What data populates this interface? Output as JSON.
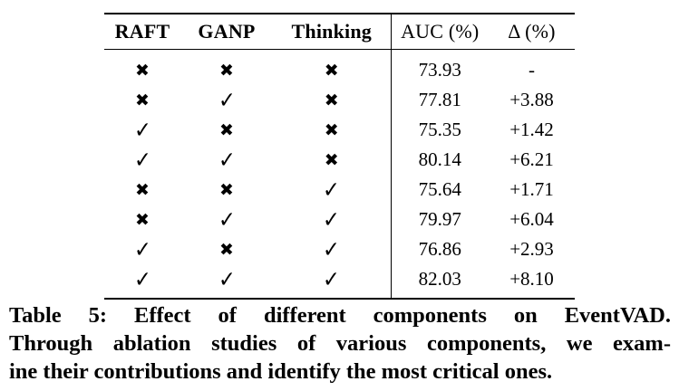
{
  "table": {
    "headers": {
      "raft": "RAFT",
      "ganp": "GANP",
      "thinking": "Thinking",
      "auc": "AUC (%)",
      "delta": "Δ (%)"
    },
    "rows": [
      {
        "raft": "✖",
        "ganp": "✖",
        "thinking": "✖",
        "auc": "73.93",
        "delta": "-"
      },
      {
        "raft": "✖",
        "ganp": "✓",
        "thinking": "✖",
        "auc": "77.81",
        "delta": "+3.88"
      },
      {
        "raft": "✓",
        "ganp": "✖",
        "thinking": "✖",
        "auc": "75.35",
        "delta": "+1.42"
      },
      {
        "raft": "✓",
        "ganp": "✓",
        "thinking": "✖",
        "auc": "80.14",
        "delta": "+6.21"
      },
      {
        "raft": "✖",
        "ganp": "✖",
        "thinking": "✓",
        "auc": "75.64",
        "delta": "+1.71"
      },
      {
        "raft": "✖",
        "ganp": "✓",
        "thinking": "✓",
        "auc": "79.97",
        "delta": "+6.04"
      },
      {
        "raft": "✓",
        "ganp": "✖",
        "thinking": "✓",
        "auc": "76.86",
        "delta": "+2.93"
      },
      {
        "raft": "✓",
        "ganp": "✓",
        "thinking": "✓",
        "auc": "82.03",
        "delta": "+8.10"
      }
    ]
  },
  "caption": {
    "line1": "Table 5: Effect of different components on EventVAD.",
    "line2": "Through ablation studies of various components, we exam-",
    "line3": "ine their contributions and identify the most critical ones."
  }
}
